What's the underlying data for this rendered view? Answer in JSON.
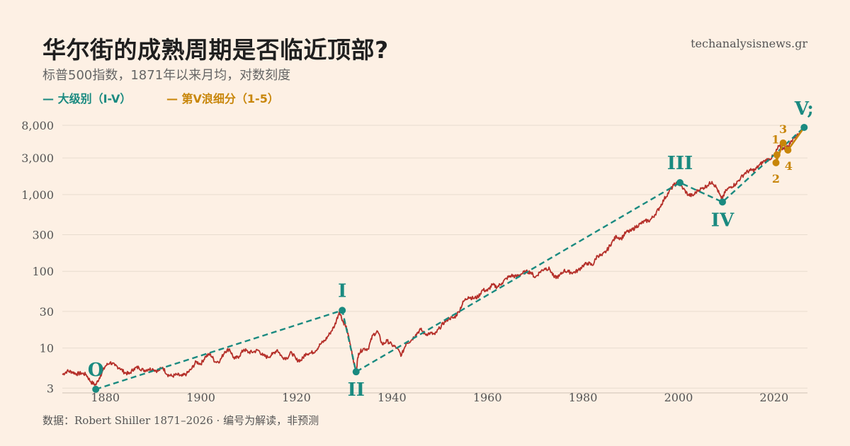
{
  "header": {
    "title": "华尔街的成熟周期是否临近顶部?",
    "site": "techanalysisnews.gr",
    "subtitle": "标普500指数，1871年以来月均，对数刻度",
    "legend_major": "— 大级别（I-V）",
    "legend_minor": "— 第V浪细分（1-5）"
  },
  "footer": {
    "source": "数据：Robert Shiller 1871–2026 · 编号为解读，非预测"
  },
  "colors": {
    "price": "#b5302a",
    "major": "#1a8a80",
    "minor": "#c8860a",
    "grid": "#e8dccf"
  },
  "chart_data": {
    "type": "line",
    "title": "华尔街的成熟周期是否临近顶部?",
    "scale": "log",
    "xlim": [
      1871,
      2027
    ],
    "ylim": [
      2.6,
      11000
    ],
    "y_ticks": [
      3,
      10,
      30,
      100,
      300,
      1000,
      3000,
      8000
    ],
    "y_tick_labels": [
      "3",
      "10",
      "30",
      "100",
      "300",
      "1,000",
      "3,000",
      "8,000"
    ],
    "x_ticks": [
      1880,
      1900,
      1920,
      1940,
      1960,
      1980,
      2000,
      2020
    ],
    "x_tick_labels": [
      "1880",
      "1900",
      "1920",
      "1940",
      "1960",
      "1980",
      "2000",
      "2020"
    ],
    "grid": "horizontal",
    "price_series": [
      [
        1871,
        4.5
      ],
      [
        1872,
        5.0
      ],
      [
        1873,
        4.9
      ],
      [
        1874,
        4.6
      ],
      [
        1875,
        4.7
      ],
      [
        1876,
        4.5
      ],
      [
        1877,
        3.6
      ],
      [
        1878,
        3.3
      ],
      [
        1879,
        4.4
      ],
      [
        1880,
        5.8
      ],
      [
        1881,
        6.5
      ],
      [
        1882,
        5.9
      ],
      [
        1883,
        5.5
      ],
      [
        1884,
        4.8
      ],
      [
        1885,
        4.6
      ],
      [
        1886,
        5.4
      ],
      [
        1887,
        5.6
      ],
      [
        1888,
        5.1
      ],
      [
        1889,
        5.3
      ],
      [
        1890,
        5.3
      ],
      [
        1891,
        5.0
      ],
      [
        1892,
        5.6
      ],
      [
        1893,
        4.5
      ],
      [
        1894,
        4.3
      ],
      [
        1895,
        4.5
      ],
      [
        1896,
        4.3
      ],
      [
        1897,
        4.6
      ],
      [
        1898,
        5.3
      ],
      [
        1899,
        6.6
      ],
      [
        1900,
        6.2
      ],
      [
        1901,
        7.8
      ],
      [
        1902,
        8.3
      ],
      [
        1903,
        6.6
      ],
      [
        1904,
        6.8
      ],
      [
        1905,
        9.0
      ],
      [
        1906,
        9.7
      ],
      [
        1907,
        7.2
      ],
      [
        1908,
        7.8
      ],
      [
        1909,
        9.6
      ],
      [
        1910,
        8.8
      ],
      [
        1911,
        8.9
      ],
      [
        1912,
        9.4
      ],
      [
        1913,
        8.0
      ],
      [
        1914,
        7.6
      ],
      [
        1915,
        8.3
      ],
      [
        1916,
        9.5
      ],
      [
        1917,
        7.6
      ],
      [
        1918,
        7.4
      ],
      [
        1919,
        8.8
      ],
      [
        1920,
        7.0
      ],
      [
        1921,
        6.9
      ],
      [
        1922,
        8.5
      ],
      [
        1923,
        8.6
      ],
      [
        1924,
        9.2
      ],
      [
        1925,
        11.2
      ],
      [
        1926,
        12.6
      ],
      [
        1927,
        15.5
      ],
      [
        1928,
        19.5
      ],
      [
        1929,
        30.0
      ],
      [
        1929.9,
        21.0
      ],
      [
        1930,
        22.0
      ],
      [
        1930.5,
        18.0
      ],
      [
        1931,
        13.5
      ],
      [
        1931.6,
        9.0
      ],
      [
        1932,
        6.5
      ],
      [
        1932.5,
        5.0
      ],
      [
        1933,
        8.5
      ],
      [
        1934,
        9.8
      ],
      [
        1935,
        9.7
      ],
      [
        1936,
        14.7
      ],
      [
        1937,
        16.5
      ],
      [
        1938,
        11.1
      ],
      [
        1939,
        12.4
      ],
      [
        1940,
        11.0
      ],
      [
        1941,
        10.0
      ],
      [
        1942,
        8.0
      ],
      [
        1943,
        11.6
      ],
      [
        1944,
        12.5
      ],
      [
        1945,
        15.0
      ],
      [
        1946,
        17.5
      ],
      [
        1947,
        15.1
      ],
      [
        1948,
        15.6
      ],
      [
        1949,
        15.0
      ],
      [
        1950,
        18.3
      ],
      [
        1951,
        21.8
      ],
      [
        1952,
        24.5
      ],
      [
        1953,
        24.7
      ],
      [
        1954,
        29.7
      ],
      [
        1955,
        40.5
      ],
      [
        1956,
        46.6
      ],
      [
        1957,
        44.4
      ],
      [
        1958,
        46.2
      ],
      [
        1959,
        57.4
      ],
      [
        1960,
        55.6
      ],
      [
        1961,
        66.7
      ],
      [
        1962,
        62.4
      ],
      [
        1963,
        70.0
      ],
      [
        1964,
        81.0
      ],
      [
        1965,
        88.2
      ],
      [
        1966,
        85.3
      ],
      [
        1967,
        91.9
      ],
      [
        1968,
        98.7
      ],
      [
        1969,
        97.8
      ],
      [
        1970,
        83.2
      ],
      [
        1971,
        98.3
      ],
      [
        1972,
        109.2
      ],
      [
        1973,
        107.4
      ],
      [
        1974,
        82.9
      ],
      [
        1975,
        86.2
      ],
      [
        1976,
        102.0
      ],
      [
        1977,
        98.2
      ],
      [
        1978,
        96.0
      ],
      [
        1979,
        103.0
      ],
      [
        1980,
        118.8
      ],
      [
        1981,
        128.0
      ],
      [
        1982,
        119.7
      ],
      [
        1983,
        160.4
      ],
      [
        1984,
        160.5
      ],
      [
        1985,
        186.8
      ],
      [
        1986,
        236.3
      ],
      [
        1987,
        286.8
      ],
      [
        1988,
        265.8
      ],
      [
        1989,
        322.8
      ],
      [
        1990,
        334.6
      ],
      [
        1991,
        376.2
      ],
      [
        1992,
        415.7
      ],
      [
        1993,
        451.4
      ],
      [
        1994,
        460.4
      ],
      [
        1995,
        541.7
      ],
      [
        1996,
        670.5
      ],
      [
        1997,
        873.4
      ],
      [
        1998,
        1085.5
      ],
      [
        1999,
        1327.3
      ],
      [
        2000,
        1427.2
      ],
      [
        2001,
        1194.2
      ],
      [
        2002,
        993.9
      ],
      [
        2003,
        965.2
      ],
      [
        2004,
        1130.6
      ],
      [
        2005,
        1207.2
      ],
      [
        2006,
        1310.5
      ],
      [
        2007,
        1477.2
      ],
      [
        2008,
        1220.0
      ],
      [
        2009,
        870.0
      ],
      [
        2010,
        1139.3
      ],
      [
        2011,
        1268.9
      ],
      [
        2012,
        1379.4
      ],
      [
        2013,
        1643.8
      ],
      [
        2014,
        1931.4
      ],
      [
        2015,
        2061.1
      ],
      [
        2016,
        2091.5
      ],
      [
        2017,
        2449.1
      ],
      [
        2018,
        2746.2
      ],
      [
        2019,
        2913.4
      ],
      [
        2020,
        3218.0
      ],
      [
        2021,
        4273.4
      ],
      [
        2022,
        3940.0
      ],
      [
        2023,
        4283.7
      ],
      [
        2024,
        5428.2
      ],
      [
        2025,
        6000.0
      ],
      [
        2026,
        7600.0
      ]
    ],
    "major_waves": [
      {
        "label": "O",
        "x": 1878,
        "y": 2.9
      },
      {
        "label": "I",
        "x": 1929.6,
        "y": 31
      },
      {
        "label": "II",
        "x": 1932.5,
        "y": 4.9
      },
      {
        "label": "III",
        "x": 2000.3,
        "y": 1430
      },
      {
        "label": "IV",
        "x": 2009.2,
        "y": 800
      },
      {
        "label": "V;",
        "x": 2026.3,
        "y": 7500
      }
    ],
    "minor_waves": [
      {
        "label": "1",
        "x": 2020.6,
        "y": 3300
      },
      {
        "label": "2",
        "x": 2020.4,
        "y": 2600
      },
      {
        "label": "3",
        "x": 2021.9,
        "y": 4700
      },
      {
        "label": "4",
        "x": 2022.9,
        "y": 3800
      }
    ]
  }
}
